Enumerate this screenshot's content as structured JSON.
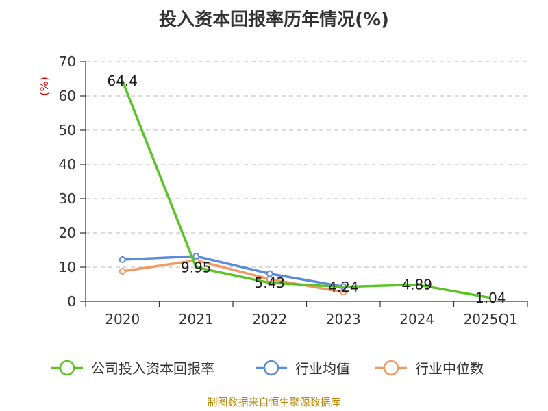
{
  "title": "投入资本回报率历年情况(%)",
  "source": "制图数据来自恒生聚源数据库",
  "chart_data": {
    "type": "line",
    "title": "投入资本回报率历年情况(%)",
    "ylabel": "(%)",
    "xlabel": "",
    "ylim": [
      0,
      70
    ],
    "yticks": [
      0,
      10,
      20,
      30,
      40,
      50,
      60,
      70
    ],
    "categories": [
      "2020",
      "2021",
      "2022",
      "2023",
      "2024",
      "2025Q1"
    ],
    "grid": true,
    "legend_position": "bottom",
    "series": [
      {
        "name": "公司投入资本回报率",
        "color": "#5ac427",
        "values": [
          64.4,
          9.95,
          5.43,
          4.24,
          4.89,
          1.04
        ],
        "labels": [
          "64.4",
          "9.95",
          "5.43",
          "4.24",
          "4.89",
          "1.04"
        ]
      },
      {
        "name": "行业均值",
        "color": "#5b8bdb",
        "values": [
          12.2,
          13.2,
          8.1,
          4.3,
          null,
          null
        ]
      },
      {
        "name": "行业中位数",
        "color": "#f19864",
        "values": [
          8.8,
          12.0,
          6.5,
          2.7,
          null,
          null
        ]
      }
    ]
  }
}
